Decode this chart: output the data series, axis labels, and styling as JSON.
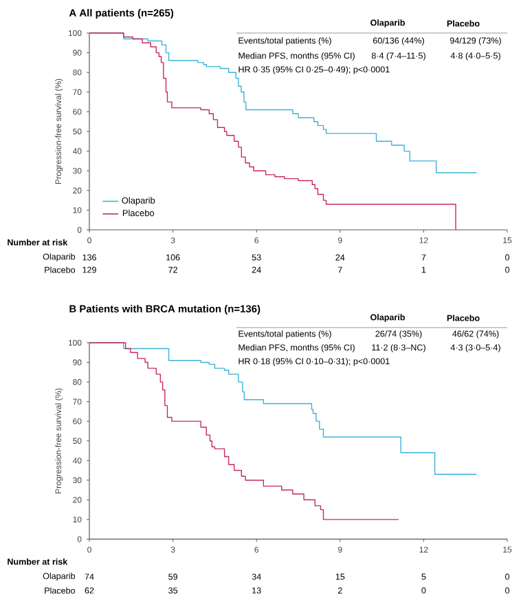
{
  "chart_data": [
    {
      "type": "step",
      "title": "A All patients (n=265)",
      "ylabel": "Progression-free survival (%)",
      "xlim": [
        0,
        15
      ],
      "ylim": [
        0,
        100
      ],
      "xticks": [
        0,
        3,
        6,
        9,
        12,
        15
      ],
      "yticks": [
        0,
        10,
        20,
        30,
        40,
        50,
        60,
        70,
        80,
        90,
        100
      ],
      "legend": "bottom left",
      "grid": false,
      "series": [
        {
          "name": "Olaparib",
          "color": "#3ab2d8",
          "x": [
            0,
            1.23,
            2.1,
            2.6,
            2.75,
            2.85,
            3.9,
            4.1,
            4.2,
            4.7,
            5.0,
            5.26,
            5.35,
            5.45,
            5.55,
            5.62,
            7.3,
            7.5,
            8.06,
            8.2,
            8.4,
            8.5,
            10.3,
            10.85,
            11.3,
            11.5,
            12.45,
            13.9
          ],
          "values": [
            100,
            97,
            96,
            94,
            90,
            86,
            85,
            84,
            83,
            82,
            80,
            77,
            73,
            70,
            65,
            61,
            59,
            57,
            55,
            53,
            51,
            49,
            45,
            43,
            40,
            35,
            29,
            29
          ]
        },
        {
          "name": "Placebo",
          "color": "#c8285a",
          "x": [
            0,
            1.23,
            1.56,
            1.9,
            2.2,
            2.4,
            2.5,
            2.58,
            2.66,
            2.75,
            2.8,
            2.96,
            4.0,
            4.3,
            4.45,
            4.6,
            4.85,
            4.93,
            5.2,
            5.35,
            5.46,
            5.6,
            5.75,
            5.9,
            6.33,
            6.66,
            7.0,
            7.5,
            8.0,
            8.1,
            8.2,
            8.4,
            8.5,
            13.15,
            13.15
          ],
          "values": [
            100,
            98,
            97,
            95,
            93,
            90,
            88,
            85,
            77,
            70,
            65,
            62,
            61,
            59,
            56,
            52,
            50,
            48,
            45,
            42,
            37,
            34,
            32,
            30,
            28,
            27,
            26,
            25,
            23,
            21,
            18,
            15,
            13,
            13,
            0
          ]
        }
      ],
      "annotations": [
        "Olaparib",
        "Placebo",
        "Events/total patients (%)",
        "60/136 (44%)",
        "94/129 (73%)",
        "Median PFS, months (95% CI)",
        "8·4 (7·4–11·5)",
        "4·8 (4·0–5·5)",
        "HR 0·35 (95% CI 0·25–0·49); p<0·0001",
        "Number at risk",
        "Olaparib",
        "136",
        "106",
        "53",
        "24",
        "7",
        "0",
        "Placebo",
        "129",
        "72",
        "24",
        "7",
        "1",
        "0"
      ]
    },
    {
      "type": "step",
      "title": "B Patients with BRCA mutation (n=136)",
      "ylabel": "Progression-free survival (%)",
      "xlim": [
        0,
        15
      ],
      "ylim": [
        0,
        100
      ],
      "xticks": [
        0,
        3,
        6,
        9,
        12,
        15
      ],
      "yticks": [
        0,
        10,
        20,
        30,
        40,
        50,
        60,
        70,
        80,
        90,
        100
      ],
      "grid": false,
      "series": [
        {
          "color": "#3ab2d8",
          "x": [
            0,
            1.23,
            2.85,
            4.0,
            4.3,
            4.5,
            4.85,
            5.0,
            5.35,
            5.5,
            5.56,
            6.25,
            7.98,
            8.03,
            8.14,
            8.26,
            8.4,
            10.85,
            11.18,
            12.4,
            13.9
          ],
          "values": [
            100,
            97,
            91,
            90,
            89,
            87,
            86,
            84,
            80,
            75,
            71,
            69,
            66,
            64,
            60,
            56,
            52,
            52,
            44,
            33,
            33
          ]
        },
        {
          "color": "#c8285a",
          "x": [
            0,
            1.3,
            1.48,
            1.73,
            2.0,
            2.1,
            2.4,
            2.55,
            2.63,
            2.71,
            2.8,
            2.96,
            4.0,
            4.2,
            4.33,
            4.4,
            4.5,
            4.85,
            5.0,
            5.2,
            5.46,
            5.6,
            6.25,
            6.9,
            7.3,
            7.7,
            8.1,
            8.3,
            8.4,
            8.7,
            11.1
          ],
          "values": [
            100,
            97,
            95,
            92,
            90,
            87,
            84,
            80,
            76,
            68,
            62,
            60,
            57,
            53,
            50,
            47,
            46,
            42,
            38,
            35,
            32,
            30,
            27,
            25,
            23,
            20,
            17,
            15,
            10,
            10,
            10
          ]
        }
      ],
      "annotations": [
        "Olaparib",
        "Placebo",
        "Events/total patients (%)",
        "26/74 (35%)",
        "46/62 (74%)",
        "Median PFS, months (95% CI)",
        "11·2 (8·3–NC)",
        "4·3 (3·0–5·4)",
        "HR 0·18 (95% CI 0·10–0·31); p<0·0001",
        "Number at risk",
        "Olaparib",
        "74",
        "59",
        "34",
        "15",
        "5",
        "0",
        "Placebo",
        "62",
        "35",
        "13",
        "2",
        "0",
        "0"
      ]
    }
  ]
}
